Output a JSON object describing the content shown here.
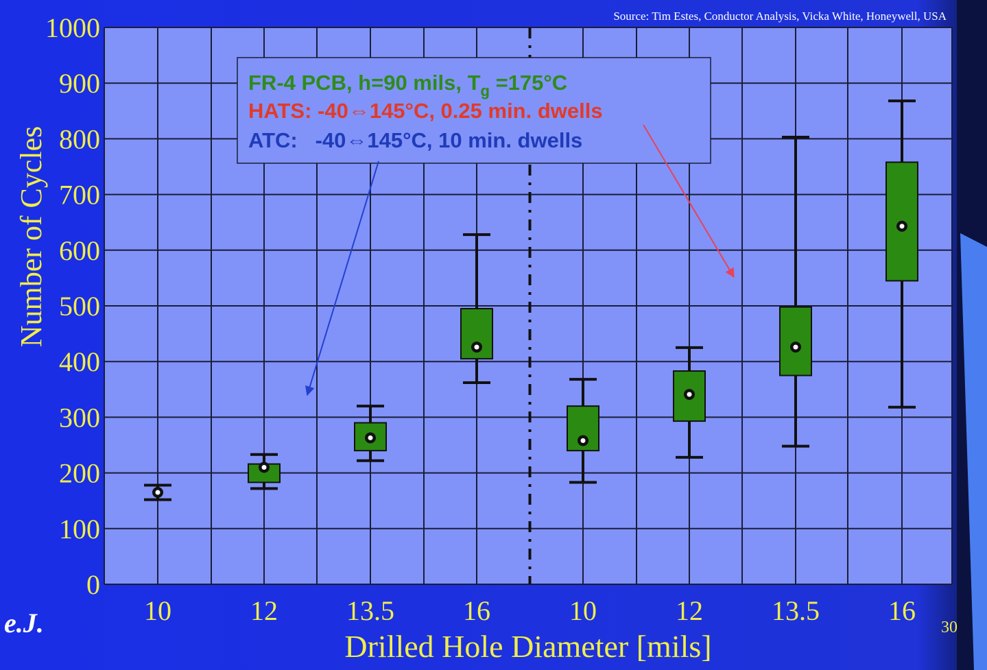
{
  "source_note": "Source: Tim Estes, Conductor Analysis, Vicka White, Honeywell, USA",
  "page_number": "30",
  "corner_mark": "e.J.",
  "legend_box": {
    "line1_main": "FR-4 PCB, h=90 mils, T",
    "line1_sub": "g",
    "line1_end": " =175°C",
    "line2": "HATS: -40⇔145°C, 0.25 min. dwells",
    "line3": "ATC:   -40⇔145°C, 10 min. dwells"
  },
  "colors": {
    "background": "#1a2ee6",
    "plot_bg": "#8193f8",
    "grid": "#1a1d3a",
    "box_fill": "#2b8a12",
    "axis_text": "#f0ee4a",
    "legend_green": "#2e8b1a",
    "legend_red": "#e23a2a",
    "legend_blue": "#1f3bb8",
    "arrow_red": "#e8435a",
    "arrow_blue": "#2440d0"
  },
  "chart_data": {
    "type": "box",
    "title": "",
    "xlabel": "Drilled Hole Diameter [mils]",
    "ylabel": "Number of Cycles",
    "ylim": [
      0,
      1000
    ],
    "yticks": [
      "0",
      "100",
      "200",
      "300",
      "400",
      "500",
      "600",
      "700",
      "800",
      "900",
      "1000"
    ],
    "grid": true,
    "categories": [
      "10",
      "12",
      "13.5",
      "16",
      "10",
      "12",
      "13.5",
      "16"
    ],
    "separator_after_index": 3,
    "series": [
      {
        "test": "ATC",
        "groups": [
          {
            "x": "10",
            "whisker_low": 152,
            "q1": 162,
            "median": 165,
            "q3": 168,
            "whisker_high": 178
          },
          {
            "x": "12",
            "whisker_low": 172,
            "q1": 183,
            "median": 210,
            "q3": 216,
            "whisker_high": 233
          },
          {
            "x": "13.5",
            "whisker_low": 222,
            "q1": 240,
            "median": 263,
            "q3": 290,
            "whisker_high": 320
          },
          {
            "x": "16",
            "whisker_low": 362,
            "q1": 405,
            "median": 426,
            "q3": 495,
            "whisker_high": 628
          }
        ]
      },
      {
        "test": "HATS",
        "groups": [
          {
            "x": "10",
            "whisker_low": 183,
            "q1": 240,
            "median": 258,
            "q3": 320,
            "whisker_high": 368
          },
          {
            "x": "12",
            "whisker_low": 228,
            "q1": 293,
            "median": 341,
            "q3": 383,
            "whisker_high": 425
          },
          {
            "x": "13.5",
            "whisker_low": 248,
            "q1": 375,
            "median": 426,
            "q3": 498,
            "whisker_high": 803
          },
          {
            "x": "16",
            "whisker_low": 318,
            "q1": 545,
            "median": 643,
            "q3": 758,
            "whisker_high": 868
          }
        ]
      }
    ]
  }
}
